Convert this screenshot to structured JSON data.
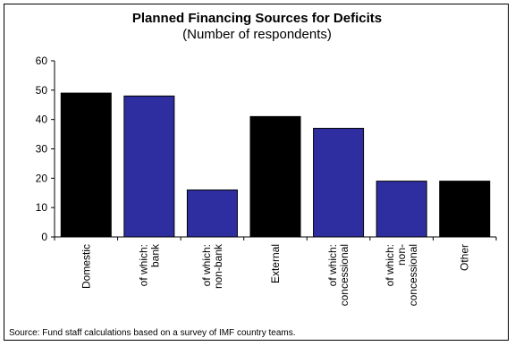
{
  "chart_data": {
    "type": "bar",
    "title": "Planned Financing Sources for Deficits",
    "subtitle": "(Number of respondents)",
    "categories": [
      [
        "Domestic"
      ],
      [
        "of which:",
        "bank"
      ],
      [
        "of which:",
        "non-bank"
      ],
      [
        "External"
      ],
      [
        "of which:",
        "concessional"
      ],
      [
        "of which:",
        "non-",
        "concessional"
      ],
      [
        "Other"
      ]
    ],
    "values": [
      49,
      48,
      16,
      41,
      37,
      19,
      19
    ],
    "bar_colors": [
      "#000000",
      "#2E2EA0",
      "#2E2EA0",
      "#000000",
      "#2E2EA0",
      "#2E2EA0",
      "#000000"
    ],
    "ylim": [
      0,
      60
    ],
    "yticks": [
      0,
      10,
      20,
      30,
      40,
      50,
      60
    ],
    "grid": false,
    "legend": "none"
  },
  "source_note": "Source: Fund staff calculations based on a survey of IMF country teams."
}
